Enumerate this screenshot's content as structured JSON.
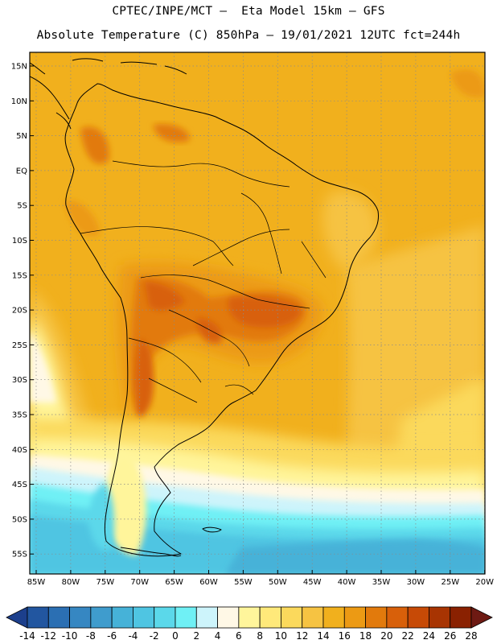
{
  "header": {
    "line1": "CPTEC/INPE/MCT —  Eta Model 15km — GFS",
    "line2": "Absolute Temperature (C) 850hPa — 19/01/2021 12UTC fct=244h"
  },
  "map": {
    "lat_labels": [
      "15N",
      "10N",
      "5N",
      "EQ",
      "5S",
      "10S",
      "15S",
      "20S",
      "25S",
      "30S",
      "35S",
      "40S",
      "45S",
      "50S",
      "55S"
    ],
    "lon_labels": [
      "85W",
      "80W",
      "75W",
      "70W",
      "65W",
      "60W",
      "55W",
      "50W",
      "45W",
      "40W",
      "35W",
      "30W",
      "25W",
      "20W"
    ]
  },
  "colorbar": {
    "levels": [
      -14,
      -12,
      -10,
      -8,
      -6,
      -4,
      -2,
      0,
      2,
      4,
      6,
      8,
      10,
      12,
      14,
      16,
      18,
      20,
      22,
      24,
      26,
      28
    ],
    "labels": [
      "-14",
      "-12",
      "-10",
      "-8",
      "-6",
      "-4",
      "-2",
      "0",
      "2",
      "4",
      "6",
      "8",
      "10",
      "12",
      "14",
      "16",
      "18",
      "20",
      "22",
      "24",
      "26",
      "28"
    ],
    "colors": [
      "#1c3f8c",
      "#2256a0",
      "#2b6fb3",
      "#3687c2",
      "#3f9ccd",
      "#46b2d8",
      "#4fc5e2",
      "#5bd8ea",
      "#6ff0f5",
      "#cdf4fb",
      "#fff8e6",
      "#fff59b",
      "#ffe97a",
      "#fbd95c",
      "#f6c342",
      "#f1b01d",
      "#ec9a14",
      "#e27a0c",
      "#d8600a",
      "#c74a06",
      "#a83402",
      "#8a2101",
      "#6e1a13"
    ]
  },
  "colors": {
    "ocean_warm": "#f1b01d",
    "ocean_mid": "#f6c342",
    "land_hot": "#d8600a",
    "coast": "#000000"
  }
}
